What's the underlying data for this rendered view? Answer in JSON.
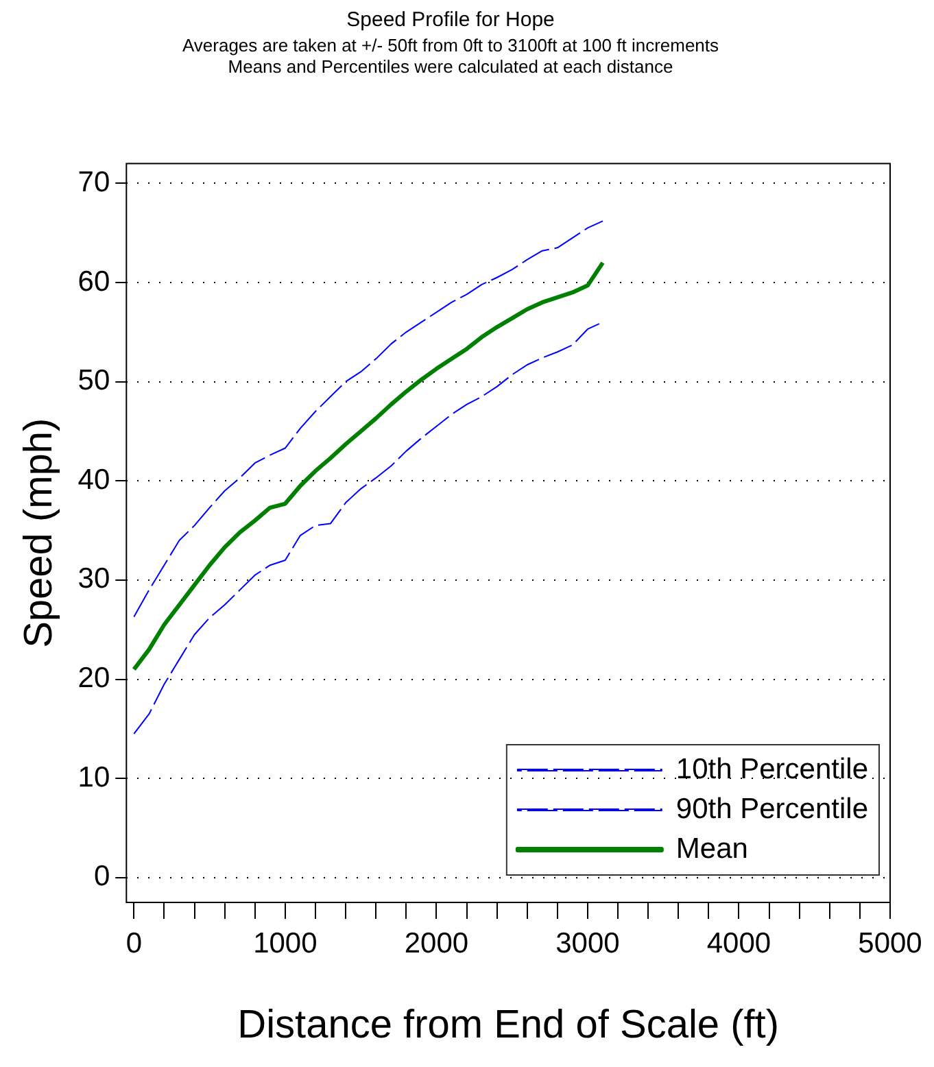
{
  "chart_data": {
    "type": "line",
    "title": "Speed Profile for Hope",
    "subtitle": "Averages are taken at +/- 50ft from 0ft to 3100ft at 100 ft increments\nMeans and Percentiles were calculated at each distance",
    "xlabel": "Distance from End of Scale (ft)",
    "ylabel": "Speed (mph)",
    "x": [
      0,
      100,
      200,
      300,
      400,
      500,
      600,
      700,
      800,
      900,
      1000,
      1100,
      1200,
      1300,
      1400,
      1500,
      1600,
      1700,
      1800,
      1900,
      2000,
      2100,
      2200,
      2300,
      2400,
      2500,
      2600,
      2700,
      2800,
      2900,
      3000,
      3100
    ],
    "series": [
      {
        "name": "10th Percentile",
        "color": "#0000ff",
        "line_style": "dashed",
        "values": [
          14.5,
          16.5,
          19.5,
          22,
          24.5,
          26.2,
          27.5,
          29,
          30.5,
          31.5,
          32,
          34.5,
          35.5,
          35.7,
          37.8,
          39.2,
          40.3,
          41.5,
          43,
          44.3,
          45.5,
          46.7,
          47.7,
          48.5,
          49.5,
          50.7,
          51.7,
          52.4,
          53,
          53.7,
          55.3,
          56
        ]
      },
      {
        "name": "90th Percentile",
        "color": "#0000ff",
        "line_style": "dashed",
        "values": [
          26.3,
          29,
          31.5,
          34,
          35.5,
          37.3,
          39,
          40.3,
          41.8,
          42.6,
          43.3,
          45.3,
          47,
          48.5,
          50,
          51,
          52.3,
          53.8,
          55,
          56,
          57,
          58,
          58.8,
          59.8,
          60.5,
          61.3,
          62.3,
          63.2,
          63.5,
          64.5,
          65.5,
          66.2
        ]
      },
      {
        "name": "Mean",
        "color": "#008000",
        "line_style": "solid",
        "values": [
          21,
          23,
          25.5,
          27.5,
          29.5,
          31.5,
          33.3,
          34.8,
          36,
          37.3,
          37.7,
          39.5,
          41,
          42.3,
          43.7,
          45,
          46.3,
          47.7,
          49,
          50.2,
          51.3,
          52.3,
          53.3,
          54.5,
          55.5,
          56.4,
          57.3,
          58,
          58.5,
          59,
          59.7,
          62
        ]
      }
    ],
    "xlim": [
      -50,
      5000
    ],
    "xticks": [
      0,
      {
        "value": 200,
        "label": null
      },
      {
        "value": 400,
        "label": null
      },
      {
        "value": 600,
        "label": null
      },
      {
        "value": 800,
        "label": null
      },
      1000,
      {
        "value": 1200,
        "label": null
      },
      {
        "value": 1400,
        "label": null
      },
      {
        "value": 1600,
        "label": null
      },
      {
        "value": 1800,
        "label": null
      },
      2000,
      {
        "value": 2200,
        "label": null
      },
      {
        "value": 2400,
        "label": null
      },
      {
        "value": 2600,
        "label": null
      },
      {
        "value": 2800,
        "label": null
      },
      3000,
      {
        "value": 3200,
        "label": null
      },
      {
        "value": 3400,
        "label": null
      },
      {
        "value": 3600,
        "label": null
      },
      {
        "value": 3800,
        "label": null
      },
      4000,
      {
        "value": 4200,
        "label": null
      },
      {
        "value": 4400,
        "label": null
      },
      {
        "value": 4600,
        "label": null
      },
      {
        "value": 4800,
        "label": null
      },
      5000
    ],
    "ylim": [
      -2.5,
      72
    ],
    "yticks": [
      0,
      10,
      20,
      30,
      40,
      50,
      60,
      70
    ],
    "grid": "y",
    "legend": "bottom right",
    "marker": "none"
  }
}
